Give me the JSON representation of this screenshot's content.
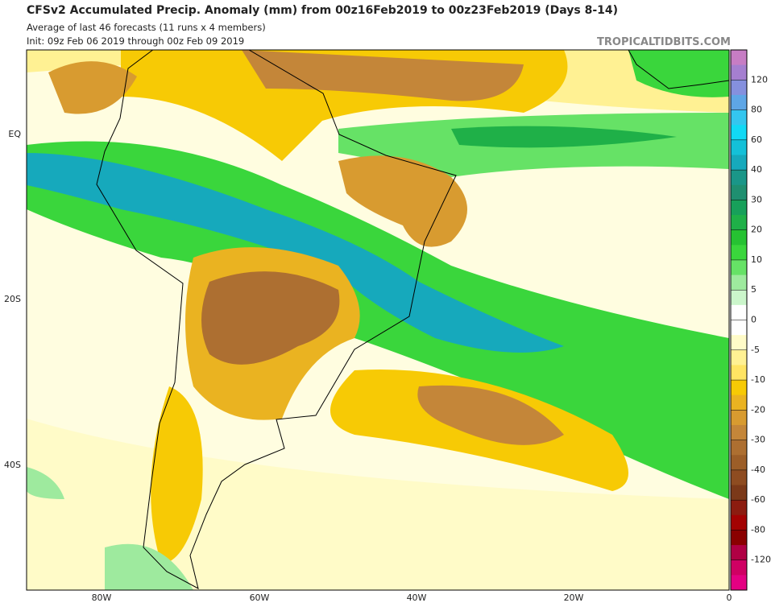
{
  "header": {
    "title": "CFSv2 Accumulated Precip. Anomaly (mm) from 00z16Feb2019 to 00z23Feb2019 (Days 8-14)",
    "subtitle": "Average of last 46 forecasts (11 runs x 4 members)",
    "init": "Init: 09z Feb 06 2019 through 00z Feb 09 2019",
    "watermark": "TROPICALTIDBITS.COM"
  },
  "map": {
    "lat_labels": [
      "EQ",
      "20S",
      "40S"
    ],
    "lon_labels": [
      "80W",
      "60W",
      "40W",
      "20W",
      "0"
    ]
  },
  "colorbar": {
    "colors": [
      "#c77dc4",
      "#a57fd0",
      "#8590de",
      "#5ea6e6",
      "#34c6ef",
      "#12d9f5",
      "#14c0d8",
      "#16a9bc",
      "#1a9688",
      "#1f8f70",
      "#17a05a",
      "#1fb048",
      "#26c232",
      "#3ad63c",
      "#66e266",
      "#9eea9e",
      "#cbf6cb",
      "#ffffff",
      "#ffffff",
      "#fffbc8",
      "#fff193",
      "#ffe463",
      "#f7ca05",
      "#eab321",
      "#d89b30",
      "#c48639",
      "#ad6f31",
      "#9c5e28",
      "#8e4c21",
      "#7b3919",
      "#8c1c10",
      "#a30202",
      "#8a0000",
      "#b00044",
      "#cf0063",
      "#e40082"
    ],
    "labels": [
      "120",
      "80",
      "60",
      "40",
      "30",
      "20",
      "10",
      "5",
      "0",
      "-5",
      "-10",
      "-20",
      "-30",
      "-40",
      "-60",
      "-80",
      "-120"
    ]
  }
}
